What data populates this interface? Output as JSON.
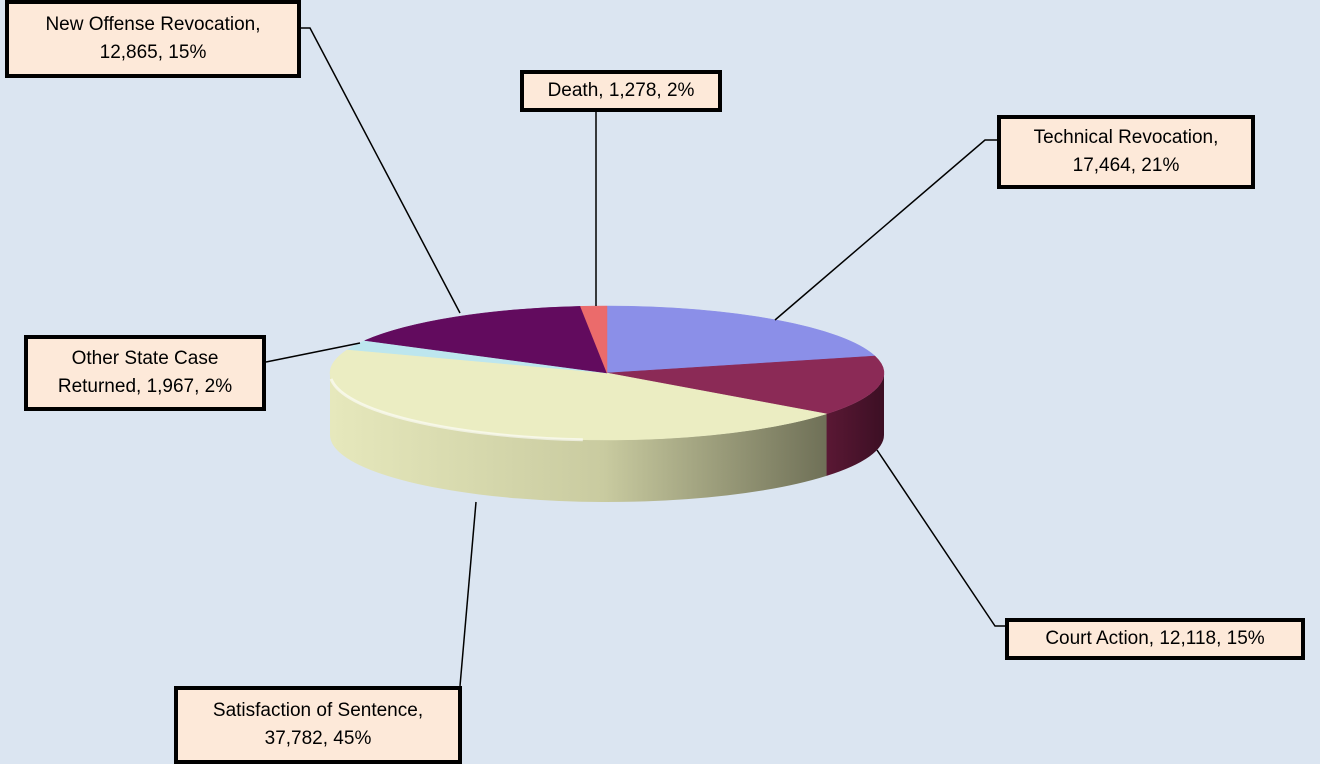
{
  "chart_data": {
    "type": "pie",
    "title": "",
    "slices": [
      {
        "name": "Technical Revocation",
        "value": 17464,
        "value_label": "17,464",
        "percent_label": "21%",
        "color": "#8b8fe8"
      },
      {
        "name": "Court Action",
        "value": 12118,
        "value_label": "12,118",
        "percent_label": "15%",
        "color": "#8b2a56"
      },
      {
        "name": "Satisfaction of Sentence",
        "value": 37782,
        "value_label": "37,782",
        "percent_label": "45%",
        "color": "#ebedc2"
      },
      {
        "name": "Other State Case Returned",
        "value": 1967,
        "value_label": "1,967",
        "percent_label": "2%",
        "color": "#bde6ee"
      },
      {
        "name": "New Offense Revocation",
        "value": 12865,
        "value_label": "12,865",
        "percent_label": "15%",
        "color": "#620b5e"
      },
      {
        "name": "Death",
        "value": 1278,
        "value_label": "1,278",
        "percent_label": "2%",
        "color": "#eb6b6b"
      }
    ]
  },
  "labels": {
    "technical_line1": "Technical Revocation,",
    "technical_line2": "17,464, 21%",
    "court": "Court Action, 12,118, 15%",
    "satisfaction_line1": "Satisfaction of Sentence,",
    "satisfaction_line2": "37,782, 45%",
    "other_line1": "Other State Case",
    "other_line2": "Returned, 1,967, 2%",
    "newoffense_line1": "New Offense Revocation,",
    "newoffense_line2": "12,865, 15%",
    "death": "Death, 1,278, 2%"
  }
}
